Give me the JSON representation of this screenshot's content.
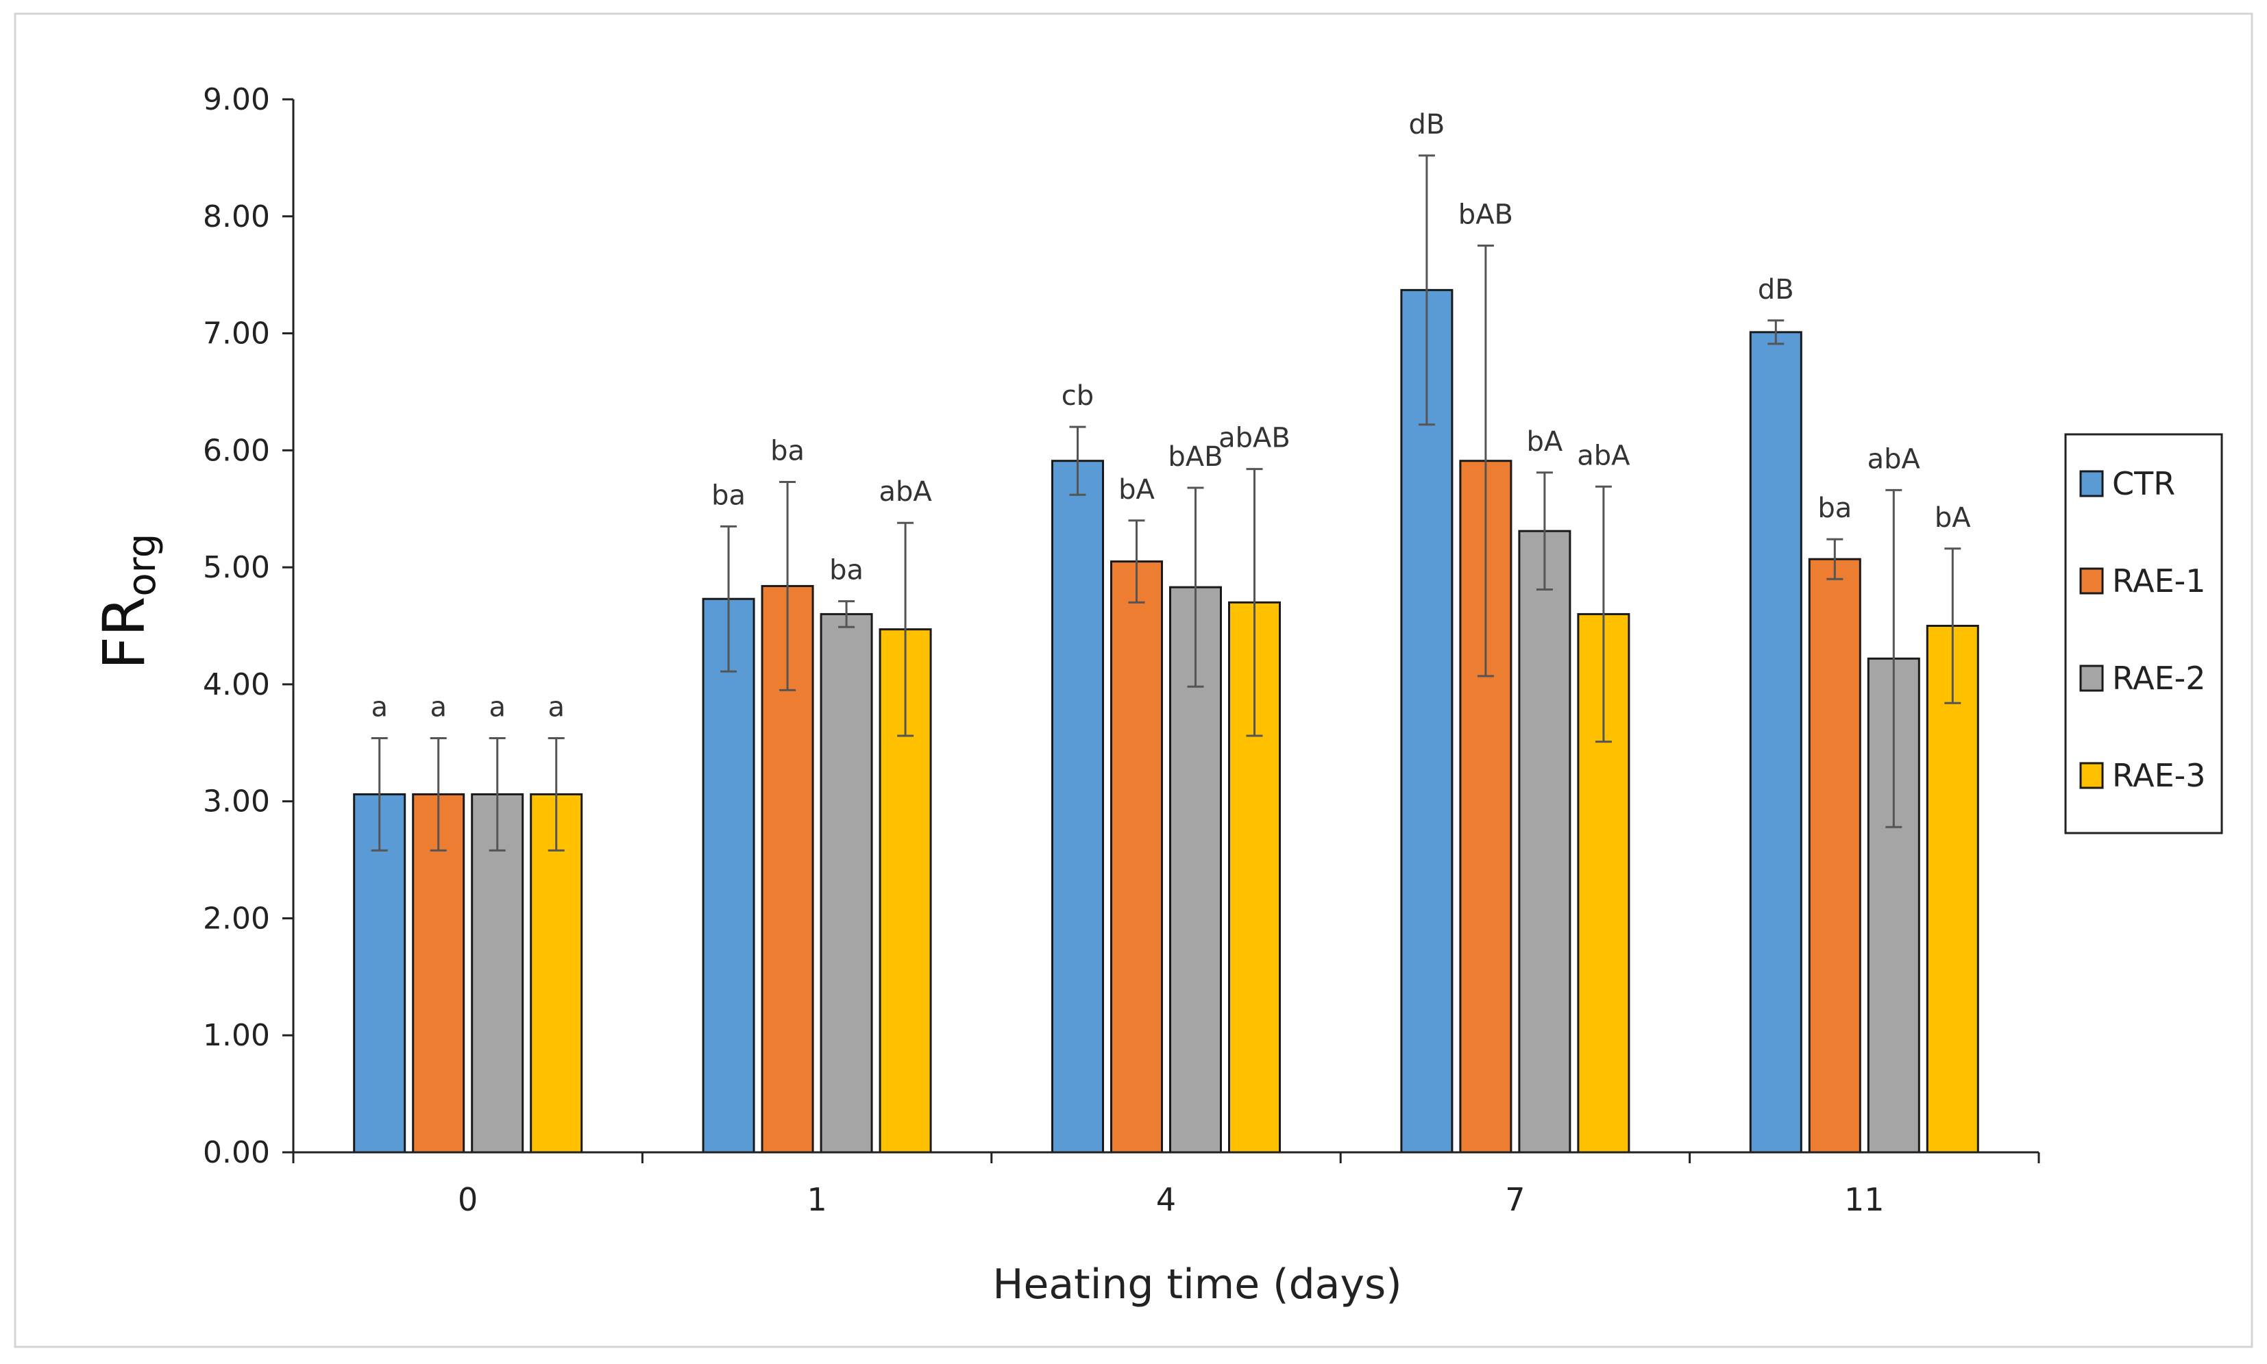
{
  "chart_data": {
    "type": "bar",
    "title": "",
    "xlabel": "Heating time (days)",
    "ylabel_main": "FR",
    "ylabel_sub": "org",
    "ylim": [
      0,
      9
    ],
    "ytick_step": 1,
    "ytick_labels": [
      "0.00",
      "1.00",
      "2.00",
      "3.00",
      "4.00",
      "5.00",
      "6.00",
      "7.00",
      "8.00",
      "9.00"
    ],
    "categories": [
      "0",
      "1",
      "4",
      "7",
      "11"
    ],
    "legend_position": "right",
    "series": [
      {
        "name": "CTR",
        "color": "#5B9BD5",
        "values": [
          3.06,
          4.73,
          5.91,
          7.37,
          7.01
        ],
        "errors": [
          0.48,
          0.62,
          0.29,
          1.15,
          0.1
        ],
        "labels": [
          "a",
          "ba",
          "cb",
          "dB",
          "dB"
        ]
      },
      {
        "name": "RAE-1",
        "color": "#ED7D31",
        "values": [
          3.06,
          4.84,
          5.05,
          5.91,
          5.07
        ],
        "errors": [
          0.48,
          0.89,
          0.35,
          1.84,
          0.17
        ],
        "labels": [
          "a",
          "ba",
          "bA",
          "bAB",
          "ba"
        ]
      },
      {
        "name": "RAE-2",
        "color": "#A5A5A5",
        "values": [
          3.06,
          4.6,
          4.83,
          5.31,
          4.22
        ],
        "errors": [
          0.48,
          0.11,
          0.85,
          0.5,
          1.44
        ],
        "labels": [
          "a",
          "ba",
          "bAB",
          "bA",
          "abA"
        ]
      },
      {
        "name": "RAE-3",
        "color": "#FFC000",
        "values": [
          3.06,
          4.47,
          4.7,
          4.6,
          4.5
        ],
        "errors": [
          0.48,
          0.91,
          1.14,
          1.09,
          0.66
        ],
        "labels": [
          "a",
          "abA",
          "abAB",
          "abA",
          "bA"
        ]
      }
    ]
  }
}
